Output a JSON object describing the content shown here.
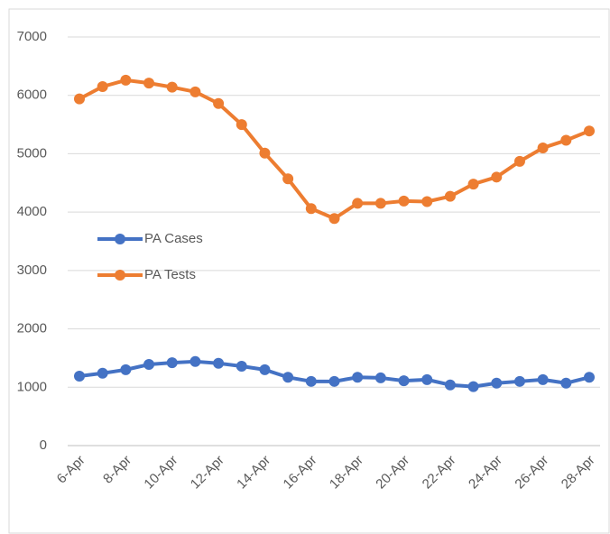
{
  "chart_data": {
    "type": "line",
    "categories": [
      "6-Apr",
      null,
      "8-Apr",
      null,
      "10-Apr",
      null,
      "12-Apr",
      null,
      "14-Apr",
      null,
      "16-Apr",
      null,
      "18-Apr",
      null,
      "20-Apr",
      null,
      "22-Apr",
      null,
      "24-Apr",
      null,
      "26-Apr",
      null,
      "28-Apr"
    ],
    "series": [
      {
        "name": "PA Cases",
        "color": "#4472c4",
        "values": [
          1190,
          1240,
          1300,
          1390,
          1420,
          1440,
          1410,
          1360,
          1300,
          1170,
          1100,
          1100,
          1170,
          1160,
          1110,
          1130,
          1040,
          1010,
          1070,
          1100,
          1130,
          1070,
          1170
        ]
      },
      {
        "name": "PA Tests",
        "color": "#ed7d31",
        "values": [
          5940,
          6150,
          6260,
          6210,
          6140,
          6060,
          5860,
          5500,
          5010,
          4570,
          4060,
          3890,
          4150,
          4150,
          4190,
          4180,
          4270,
          4480,
          4600,
          4870,
          5100,
          5230,
          5390
        ]
      }
    ],
    "ylim": [
      0,
      7000
    ],
    "yticks": [
      0,
      1000,
      2000,
      3000,
      4000,
      5000,
      6000,
      7000
    ],
    "grid": true,
    "legend": "left"
  }
}
